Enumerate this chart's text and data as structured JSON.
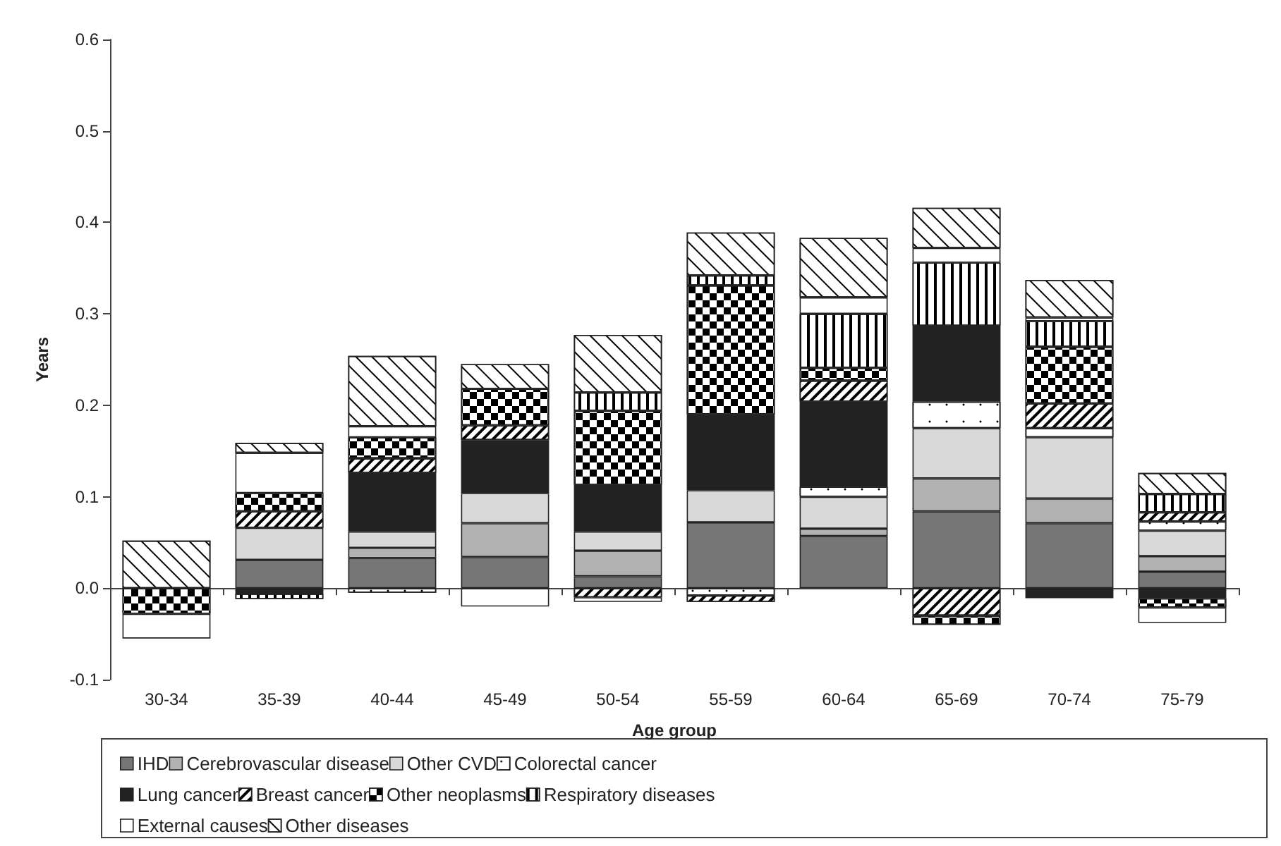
{
  "chart_data": {
    "type": "bar",
    "stacked": true,
    "xlabel": "Age group",
    "ylabel": "Years",
    "categories": [
      "30-34",
      "35-39",
      "40-44",
      "45-49",
      "50-54",
      "55-59",
      "60-64",
      "65-69",
      "70-74",
      "75-79"
    ],
    "ylim": [
      -0.1,
      0.6
    ],
    "yticks": [
      -0.1,
      {
        "value": 0,
        "label": "0.0"
      },
      0.1,
      0.2,
      0.3,
      0.4,
      0.5,
      0.6
    ],
    "legend": "bottom",
    "series": [
      {
        "name": "IHD",
        "color": "#767676",
        "values": [
          null,
          0.031,
          0.033,
          0.034,
          0.013,
          0.072,
          0.057,
          0.084,
          0.071,
          0.018
        ]
      },
      {
        "name": "Cerebrovascular disease",
        "color": "#b2b2b2",
        "values": [
          null,
          null,
          0.011,
          0.037,
          0.028,
          null,
          0.008,
          0.036,
          0.027,
          0.017
        ]
      },
      {
        "name": "Other CVD",
        "color": "#d9d9d9",
        "values": [
          null,
          0.035,
          0.018,
          0.033,
          0.021,
          0.035,
          0.035,
          0.055,
          0.067,
          0.028
        ]
      },
      {
        "name": "Colorectal cancer",
        "color": "#ffffff",
        "values": [
          null,
          null,
          -0.005,
          null,
          null,
          -0.008,
          0.011,
          0.029,
          0.01,
          0.01
        ]
      },
      {
        "name": "Lung cancer",
        "color": "#222222",
        "values": [
          null,
          -0.006,
          0.064,
          0.058,
          0.051,
          0.083,
          0.093,
          0.083,
          -0.011,
          -0.011
        ]
      },
      {
        "name": "Breast cancer",
        "color": "#ffffff",
        "values": [
          null,
          0.018,
          0.016,
          0.016,
          -0.01,
          -0.007,
          0.023,
          -0.03,
          0.027,
          0.01
        ]
      },
      {
        "name": "Other neoplasms",
        "color": "#ffffff",
        "values": [
          -0.028,
          0.02,
          0.023,
          0.04,
          0.081,
          0.141,
          0.014,
          -0.01,
          0.062,
          -0.01
        ]
      },
      {
        "name": "Respiratory diseases",
        "color": "#ffffff",
        "values": [
          null,
          -0.006,
          null,
          null,
          0.02,
          0.011,
          0.059,
          0.069,
          0.028,
          0.02
        ]
      },
      {
        "name": "External causes",
        "color": "#ffffff",
        "values": [
          -0.027,
          0.044,
          0.012,
          -0.02,
          -0.005,
          null,
          0.018,
          0.016,
          0.004,
          -0.017
        ]
      },
      {
        "name": "Other diseases",
        "color": "#ffffff",
        "values": [
          0.052,
          0.011,
          0.077,
          0.027,
          0.063,
          0.047,
          0.065,
          0.044,
          0.041,
          0.023
        ]
      }
    ]
  }
}
